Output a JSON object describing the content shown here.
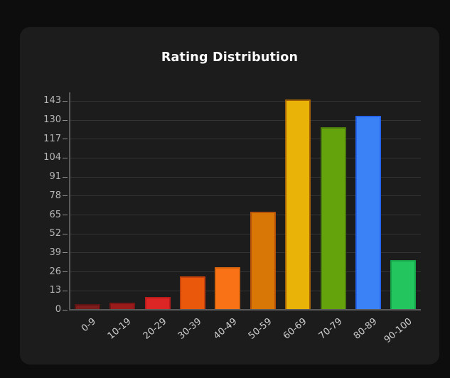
{
  "theme": {
    "page_bg": "#0d0d0d",
    "card_bg": "#1c1c1c",
    "title_color": "#fafafa",
    "axis_line_color": "#5a5a5a",
    "grid_color": "#343434",
    "tick_dash_color": "#8f8f8f",
    "ytick_label_color": "#b5b5b5",
    "xtick_label_color": "#cfcfcf"
  },
  "chart_data": {
    "type": "bar",
    "title": "Rating Distribution",
    "categories": [
      "0-9",
      "10-19",
      "20-29",
      "30-39",
      "40-49",
      "50-59",
      "60-69",
      "70-79",
      "80-89",
      "90-100"
    ],
    "values": [
      4,
      5,
      9,
      23,
      29,
      67,
      144,
      125,
      133,
      34
    ],
    "bar_colors": [
      "#7f1d1d",
      "#991b1b",
      "#dc2626",
      "#ea580c",
      "#f97316",
      "#d97706",
      "#eab308",
      "#65a30d",
      "#3b82f6",
      "#22c55e"
    ],
    "bar_border_colors": [
      "#5f1414",
      "#7a1515",
      "#b91c1c",
      "#c2410c",
      "#d2620e",
      "#b45309",
      "#a16207",
      "#4d7c0f",
      "#2563eb",
      "#16a34a"
    ],
    "yticks": [
      0,
      13,
      26,
      39,
      52,
      65,
      78,
      91,
      104,
      117,
      130,
      143
    ],
    "ylim": [
      0,
      149
    ],
    "xlabel": "",
    "ylabel": "",
    "grid": "horizontal",
    "legend": "none",
    "x_label_rotation_deg": -40
  }
}
